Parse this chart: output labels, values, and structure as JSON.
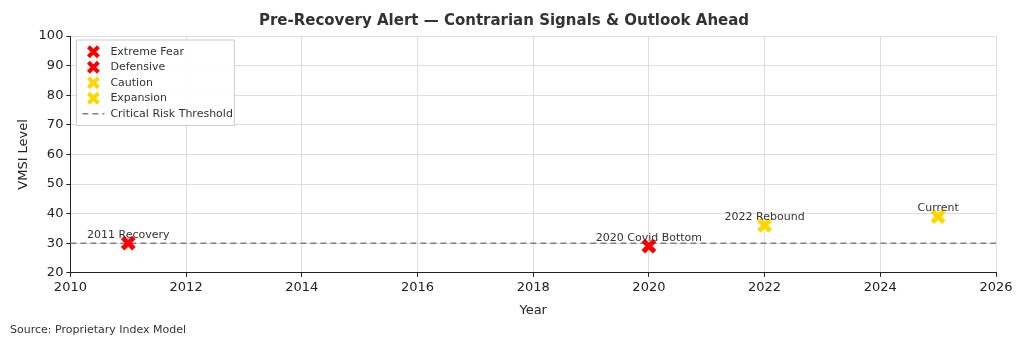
{
  "chart_data": {
    "type": "scatter",
    "title": "Pre-Recovery Alert — Contrarian Signals & Outlook Ahead",
    "xlabel": "Year",
    "ylabel": "VMSI Level",
    "series": [
      {
        "name": "Extreme Fear",
        "color": "#ff0000",
        "x": [
          2011
        ],
        "values": [
          30
        ]
      },
      {
        "name": "Defensive",
        "color": "#ff0000",
        "x": [
          2020
        ],
        "values": [
          29
        ]
      },
      {
        "name": "Caution",
        "color": "#ffd700",
        "x": [
          2022
        ],
        "values": [
          36
        ]
      },
      {
        "name": "Expansion",
        "color": "#ffd700",
        "x": [
          2025
        ],
        "values": [
          39
        ]
      }
    ],
    "xlim": [
      2010,
      2026
    ],
    "xticks": [
      2010,
      2012,
      2014,
      2016,
      2018,
      2020,
      2022,
      2024,
      2026
    ],
    "ylim": [
      20,
      100
    ],
    "yticks": [
      20,
      30,
      40,
      50,
      60,
      70,
      80,
      90,
      100
    ],
    "ref_lines": [
      {
        "axis": "y",
        "value": 30,
        "label": "Critical Risk Threshold",
        "color": "#808080",
        "line_style": "dashed"
      }
    ],
    "annotations": [
      {
        "text": "2011 Recovery",
        "x": 2011,
        "y": 30
      },
      {
        "text": "2020 Covid Bottom",
        "x": 2020,
        "y": 29
      },
      {
        "text": "2022 Rebound",
        "x": 2022,
        "y": 36
      },
      {
        "text": "Current",
        "x": 2025,
        "y": 39
      },
      "Source: Proprietary Index Model"
    ],
    "grid": true,
    "legend": "top left",
    "marker": "cross"
  }
}
